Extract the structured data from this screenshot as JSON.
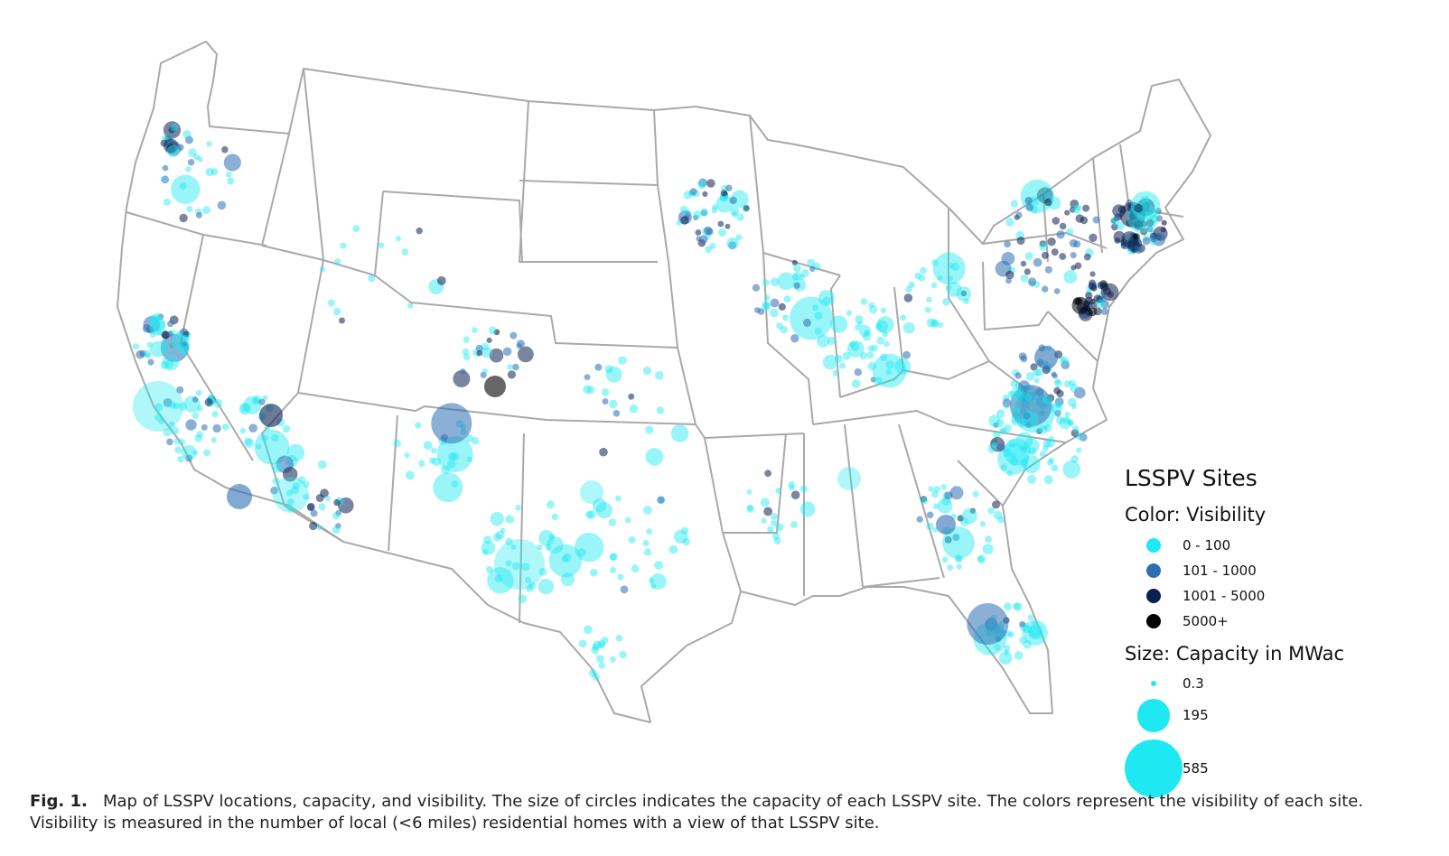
{
  "legend": {
    "title": "LSSPV Sites",
    "color_heading": "Color: Visibility",
    "color_items": [
      {
        "label": "0 - 100",
        "color": "#1ee8f2"
      },
      {
        "label": "101 - 1000",
        "color": "#2e6fb2"
      },
      {
        "label": "1001 - 5000",
        "color": "#0c2050"
      },
      {
        "label": "5000+",
        "color": "#000000"
      }
    ],
    "size_heading": "Size: Capacity in MWac",
    "size_items": [
      {
        "label": "0.3",
        "value": 0.3
      },
      {
        "label": "195",
        "value": 195
      },
      {
        "label": "585",
        "value": 585
      }
    ]
  },
  "caption": {
    "label": "Fig. 1.",
    "text": "Map of LSSPV locations, capacity, and visibility. The size of circles indicates the capacity of each LSSPV site. The colors represent the visibility of each site. Visibility is measured in the number of local (<6 miles) residential homes with a view of that LSSPV site."
  },
  "colors": {
    "state_border": "#a9a9a9",
    "cyan": "#1ee8f2",
    "blue": "#2e6fb2",
    "navy": "#0c2050",
    "black": "#000000"
  }
}
